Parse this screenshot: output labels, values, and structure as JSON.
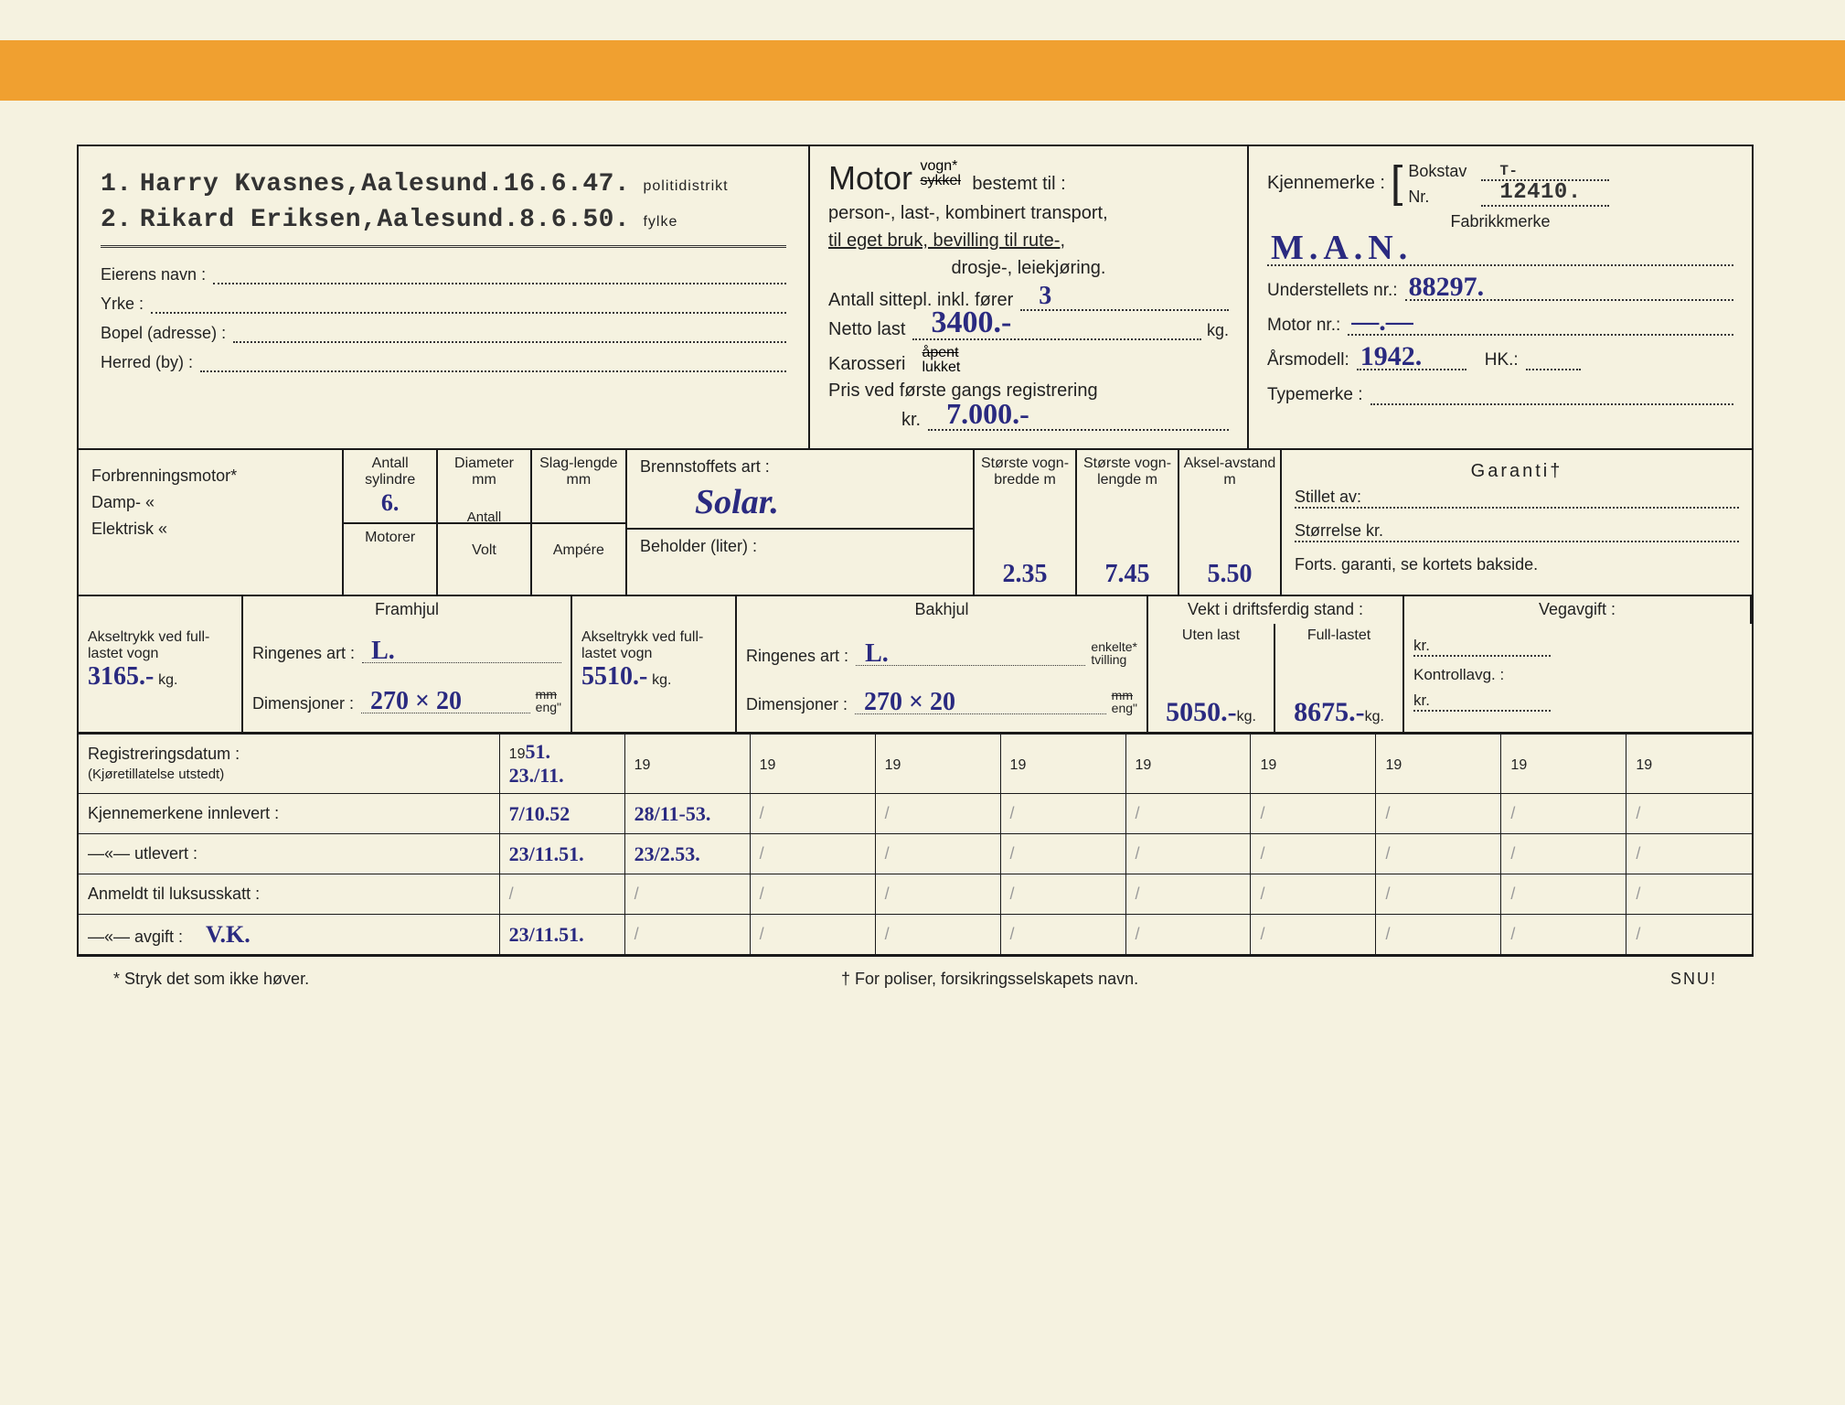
{
  "colors": {
    "bg": "#f5f2e0",
    "orange": "#f0a030",
    "ink": "#1a1a1a",
    "hw": "#2a2a80"
  },
  "owners": {
    "line1_num": "1.",
    "line1_name": "Harry Kvasnes,Aalesund.16.6.47.",
    "line1_suffix": "politidistrikt",
    "line2_num": "2.",
    "line2_name": "Rikard Eriksen,Aalesund.8.6.50.",
    "line2_suffix": "fylke"
  },
  "owner_fields": {
    "eier": "Eierens navn :",
    "yrke": "Yrke :",
    "bopel": "Bopel (adresse) :",
    "herred": "Herred (by) :"
  },
  "motor": {
    "title": "Motor",
    "top": "vogn*",
    "bot": "sykkel",
    "bestemt": "bestemt til :",
    "line1": "person-, last-, kombinert transport,",
    "line2": "til eget bruk, bevilling til rute-,",
    "line3": "drosje-, leiekjøring.",
    "sittepl_lbl": "Antall sittepl. inkl. fører",
    "sittepl": "3",
    "netto_lbl": "Netto last",
    "netto": "3400.-",
    "netto_unit": "kg.",
    "karosseri_lbl": "Karosseri",
    "kar_top": "åpent",
    "kar_bot": "lukket",
    "pris_lbl": "Pris ved første gangs registrering",
    "pris_pre": "kr.",
    "pris": "7.000.-"
  },
  "kjennemerke": {
    "label": "Kjennemerke :",
    "bokstav_lbl": "Bokstav",
    "bokstav": "T-",
    "nr_lbl": "Nr.",
    "nr": "12410."
  },
  "specs": {
    "fabrikk_lbl": "Fabrikkmerke",
    "fabrikk": "M.A.N.",
    "understell_lbl": "Understellets nr.:",
    "understell": "88297.",
    "motornr_lbl": "Motor nr.:",
    "motornr": "—.—",
    "aarsmodell_lbl": "Årsmodell:",
    "aarsmodell": "1942.",
    "hk_lbl": "HK.:",
    "typemerke_lbl": "Typemerke :"
  },
  "engine": {
    "forbr": "Forbrenningsmotor*",
    "damp": "Damp-        «",
    "elektrisk": "Elektrisk     «",
    "antall_syl": "Antall sylindre",
    "antall_syl_val": "6.",
    "diameter": "Diameter mm",
    "slag": "Slag-lengde mm",
    "motorer": "Motorer",
    "antall": "Antall",
    "volt": "Volt",
    "ampere": "Ampére",
    "brennstoff": "Brennstoffets art :",
    "brennstoff_val": "Solar.",
    "beholder": "Beholder (liter) :",
    "bredde": "Største vogn-bredde m",
    "bredde_val": "2.35",
    "lengde": "Største vogn-lengde m",
    "lengde_val": "7.45",
    "aksel": "Aksel-avstand m",
    "aksel_val": "5.50",
    "garanti": "Garanti†",
    "stillet": "Stillet av:",
    "storrelse": "Størrelse kr.",
    "forts": "Forts. garanti, se kortets bakside."
  },
  "wheels": {
    "framhjul": "Framhjul",
    "bakhjul": "Bakhjul",
    "aksel_lbl": "Akseltrykk ved full-lastet vogn",
    "aksel_front": "3165.-",
    "aksel_front_unit": "kg.",
    "aksel_rear": "5510.-",
    "aksel_rear_unit": "kg.",
    "ringenes": "Ringenes art :",
    "ringenes_front": "L.",
    "ringenes_rear": "L.",
    "dim_lbl": "Dimensjoner :",
    "dim_front": "270 × 20",
    "dim_rear": "270 × 20",
    "mm_eng": "mm / eng\"",
    "enkelte": "enkelte*",
    "tvilling": "tvilling",
    "vekt_head": "Vekt i driftsferdig stand :",
    "uten": "Uten last",
    "full": "Full-lastet",
    "uten_val": "5050.-",
    "full_val": "8675.-",
    "kg": "kg.",
    "vegavgift": "Vegavgift :",
    "kontroll": "Kontrollavg. :",
    "kr": "kr."
  },
  "reg": {
    "rows": [
      {
        "label": "Registreringsdatum :",
        "sublabel": "(Kjøretillatelse utstedt)",
        "c1": "51.",
        "c1b": "23./11."
      },
      {
        "label": "Kjennemerkene innlevert :",
        "c1": "7/10.52",
        "c2": "28/11-53."
      },
      {
        "label": "—«—         utlevert :",
        "c1": "23/11.51.",
        "c2": "23/2.53."
      },
      {
        "label": "Anmeldt til luksusskatt :"
      },
      {
        "label": "—«—     avgift :",
        "annot": "V.K.",
        "c1": "23/11.51."
      }
    ],
    "year_prefix": "19"
  },
  "footer": {
    "left": "* Stryk det som ikke høver.",
    "mid": "† For poliser, forsikringsselskapets navn.",
    "right": "SNU!"
  }
}
